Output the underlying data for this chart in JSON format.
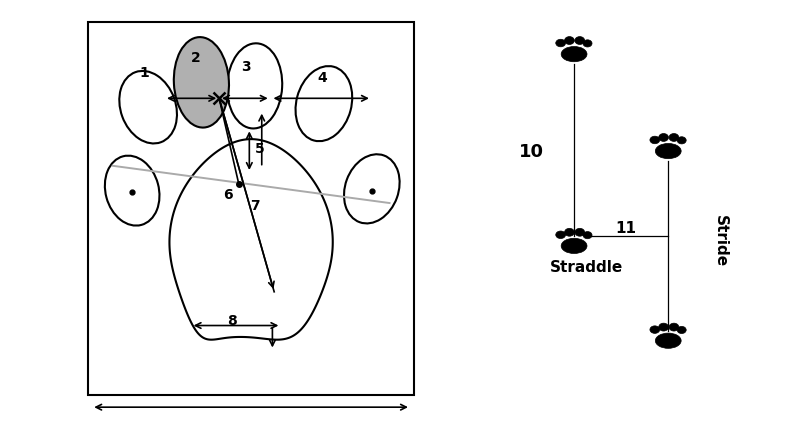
{
  "bg_color": "#ffffff",
  "box_color": "#000000",
  "paw_outline_color": "#000000",
  "toe2_fill": "#b0b0b0",
  "arrow_color": "#000000",
  "gray_line_color": "#aaaaaa",
  "label_1": "1",
  "label_2": "2",
  "label_3": "3",
  "label_4": "4",
  "label_5": "5",
  "label_6": "6",
  "label_7": "7",
  "label_8": "8",
  "label_10": "10",
  "label_11": "11",
  "straddle_text": "Straddle",
  "stride_text": "Stride",
  "font_size_labels": 10,
  "font_size_stride": 10
}
